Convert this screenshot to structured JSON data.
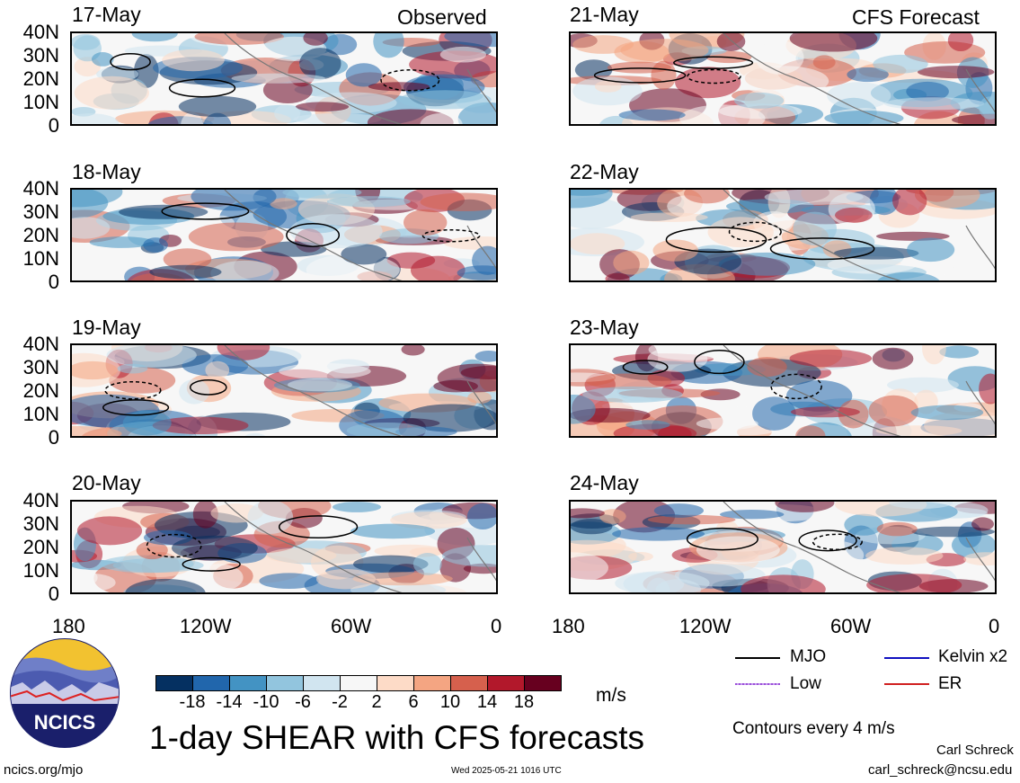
{
  "chart_data": {
    "type": "heatmap",
    "title": "1-day SHEAR with CFS forecasts",
    "units": "m/s",
    "column_titles": [
      "Observed",
      "CFS Forecast"
    ],
    "panels_observed": [
      "17-May",
      "18-May",
      "19-May",
      "20-May"
    ],
    "panels_forecast": [
      "21-May",
      "22-May",
      "23-May",
      "24-May"
    ],
    "y_ticks": [
      "40N",
      "30N",
      "20N",
      "10N",
      "0"
    ],
    "x_ticks": [
      "180",
      "120W",
      "60W",
      "0"
    ],
    "x_range": [
      "180",
      "0"
    ],
    "y_range": [
      "0",
      "40N"
    ],
    "colorbar_ticks": [
      "-18",
      "-14",
      "-10",
      "-6",
      "-2",
      "2",
      "6",
      "10",
      "14",
      "18"
    ],
    "colorbar_colors": [
      "#053061",
      "#2166ac",
      "#4393c3",
      "#92c5de",
      "#d1e5f0",
      "#f7f7f7",
      "#fddbc7",
      "#f4a582",
      "#d6604d",
      "#b2182b",
      "#67001f"
    ],
    "contour_interval_text": "Contours every 4 m/s",
    "legend": [
      {
        "label": "MJO",
        "color": "#000000"
      },
      {
        "label": "Kelvin x2",
        "color": "#1010c0"
      },
      {
        "label": "Low",
        "color": "#9b4fd8"
      },
      {
        "label": "ER",
        "color": "#d02020"
      }
    ]
  },
  "logo": {
    "text": "NCICS"
  },
  "footer": {
    "url": "ncics.org/mjo",
    "timestamp": "Wed 2025-05-21 1016 UTC",
    "author": "Carl Schreck",
    "email": "carl_schreck@ncsu.edu"
  }
}
